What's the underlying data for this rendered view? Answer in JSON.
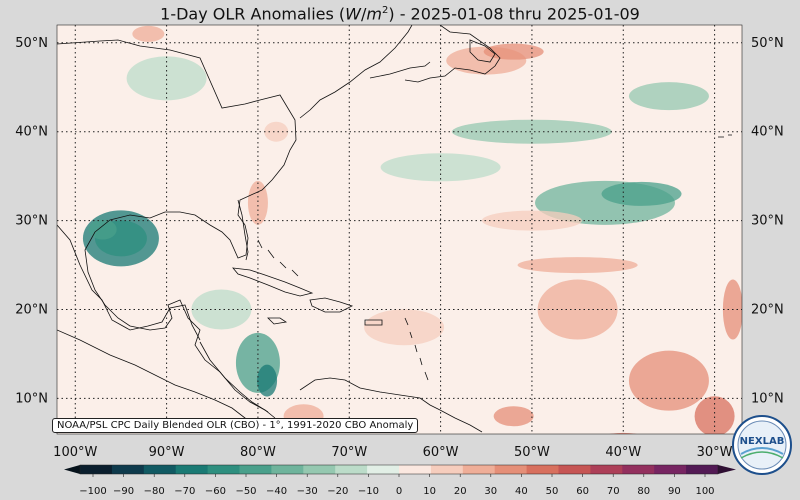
{
  "title": "1-Day OLR Anomalies (W/m²) - 2025-01-08 thru 2025-01-09",
  "attribution": "NOAA/PSL CPC Daily Blended OLR (CBO) - 1°, 1991-2020 CBO Anomaly",
  "logo_text": "NEXLAB",
  "lat_labels": [
    "50°N",
    "40°N",
    "30°N",
    "20°N",
    "10°N"
  ],
  "lon_labels": [
    "100°W",
    "90°W",
    "80°W",
    "70°W",
    "60°W",
    "50°W",
    "40°W",
    "30°W"
  ],
  "colorbar": {
    "ticks": [
      "−100",
      "−90",
      "−80",
      "−70",
      "−60",
      "−50",
      "−40",
      "−30",
      "−20",
      "−10",
      "0",
      "10",
      "20",
      "30",
      "40",
      "50",
      "60",
      "70",
      "80",
      "90",
      "100"
    ],
    "neg_colors": [
      "#0b1f2e",
      "#0e3a4c",
      "#115a63",
      "#1a7a74",
      "#2e8f7f",
      "#4aa08b",
      "#6fb49c",
      "#95c8b0",
      "#bcdcc9",
      "#e2efe6"
    ],
    "pos_colors": [
      "#fbe8e0",
      "#f6cdbd",
      "#efae98",
      "#e58f78",
      "#d8705e",
      "#c65554",
      "#ad3f58",
      "#93305e",
      "#772562",
      "#531a55"
    ]
  },
  "map_extent": {
    "lon_min": -102,
    "lon_max": -27,
    "lat_min": 6,
    "lat_max": 52
  }
}
